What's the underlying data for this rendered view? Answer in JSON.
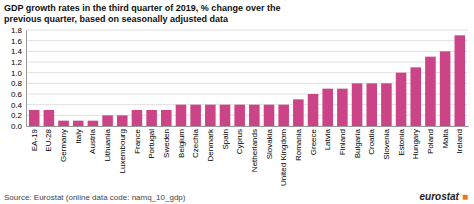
{
  "chart_data": {
    "type": "bar",
    "title": "GDP growth rates in the third quarter of 2019, % change over the\nprevious quarter, based on seasonally adjusted data",
    "annotations": [
      "Source: Eurostat (online data code: namq_10_gdp)",
      "eurostat",
      "■"
    ],
    "categories": [
      "EA-19",
      "EU-28",
      "Germany",
      "Italy",
      "Austria",
      "Lithuania",
      "Luxembourg",
      "France",
      "Portugal",
      "Sweden",
      "Belgium",
      "Czechia",
      "Denmark",
      "Spain",
      "Cyprus",
      "Netherlands",
      "Slovakia",
      "United Kingdom",
      "Romania",
      "Greece",
      "Latvia",
      "Finland",
      "Bulgaria",
      "Croatia",
      "Slovenia",
      "Estonia",
      "Hungary",
      "Poland",
      "Malta",
      "Ireland"
    ],
    "values": [
      0.3,
      0.3,
      0.1,
      0.1,
      0.1,
      0.2,
      0.2,
      0.3,
      0.3,
      0.3,
      0.4,
      0.4,
      0.4,
      0.4,
      0.4,
      0.4,
      0.4,
      0.4,
      0.5,
      0.6,
      0.7,
      0.7,
      0.8,
      0.8,
      0.8,
      1.0,
      1.1,
      1.3,
      1.4,
      1.7
    ],
    "color": "#cc4488",
    "ylim": [
      0,
      1.8
    ],
    "yticks": [
      {
        "value": 0,
        "label": "0.0"
      },
      0.2,
      0.4,
      0.6,
      0.8,
      {
        "value": 1,
        "label": "1.0"
      },
      1.2,
      1.4,
      1.6,
      1.8
    ],
    "grid": true
  }
}
